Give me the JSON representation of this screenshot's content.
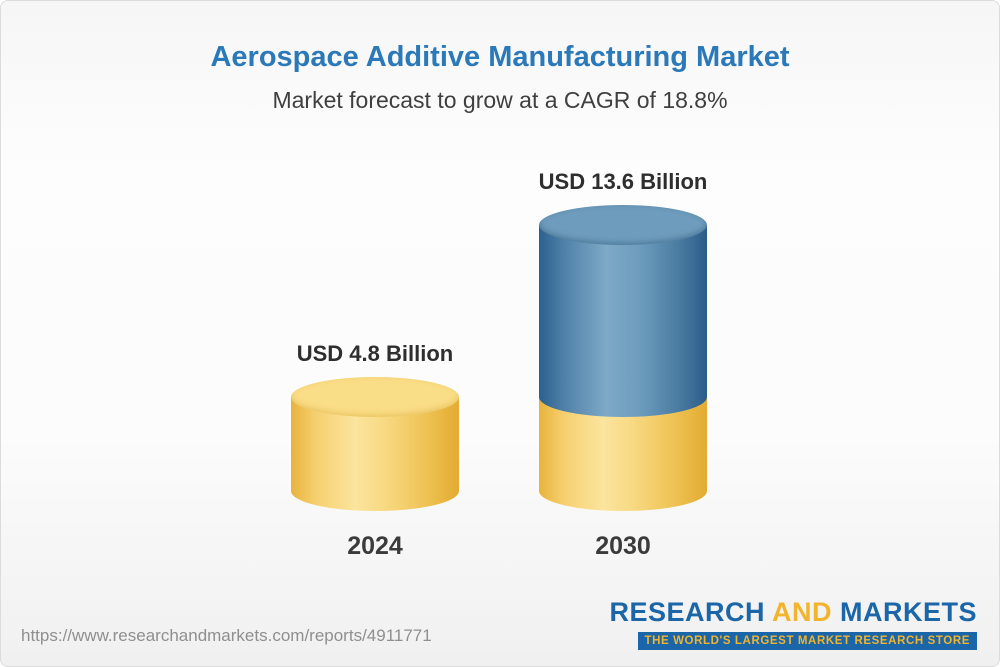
{
  "title": "Aerospace Additive Manufacturing Market",
  "subtitle": "Market forecast to grow at a CAGR of 18.8%",
  "chart_data": {
    "type": "bar",
    "categories": [
      "2024",
      "2030"
    ],
    "values": [
      4.8,
      13.6
    ],
    "value_labels": [
      "USD 4.8 Billion",
      "USD 13.6 Billion"
    ],
    "unit": "USD Billion",
    "cagr_percent": 18.8,
    "title": "Aerospace Additive Manufacturing Market",
    "subtitle": "Market forecast to grow at a CAGR of 18.8%",
    "legend": "none",
    "grid": false,
    "colors": {
      "base_segment": "#f5cf6a",
      "growth_segment": "#4a7ca8",
      "title_text": "#2b79b9"
    }
  },
  "footer": {
    "url": "https://www.researchandmarkets.com/reports/4911771",
    "logo": {
      "part1": "RESEARCH",
      "part2": "AND",
      "part3": "MARKETS",
      "tagline": "THE WORLD'S LARGEST MARKET RESEARCH STORE"
    }
  }
}
